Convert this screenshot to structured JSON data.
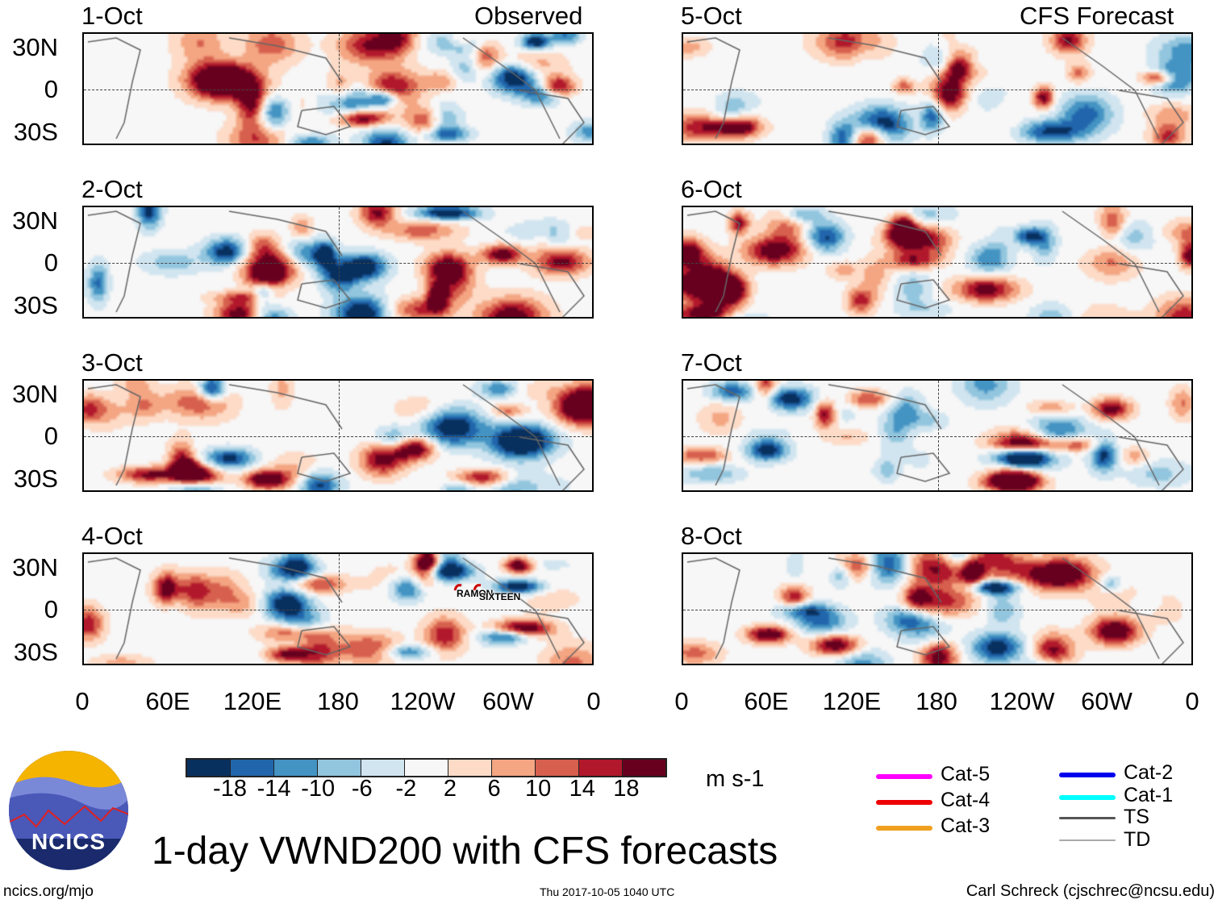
{
  "headers": {
    "left": "Observed",
    "right": "CFS Forecast"
  },
  "panels_left": [
    {
      "date": "1-Oct"
    },
    {
      "date": "2-Oct"
    },
    {
      "date": "3-Oct"
    },
    {
      "date": "4-Oct"
    }
  ],
  "panels_right": [
    {
      "date": "5-Oct"
    },
    {
      "date": "6-Oct"
    },
    {
      "date": "7-Oct"
    },
    {
      "date": "8-Oct"
    }
  ],
  "lat_labels": [
    "30N",
    "0",
    "30S"
  ],
  "lon_labels": [
    "0",
    "60E",
    "120E",
    "180",
    "120W",
    "60W",
    "0"
  ],
  "storms": {
    "a": "RAMON",
    "b": "SIXTEEN"
  },
  "colorbar": {
    "colors": [
      "#08305f",
      "#2166ac",
      "#4393c3",
      "#92c5de",
      "#d1e5f0",
      "#f7f7f7",
      "#fddbc7",
      "#f4a582",
      "#d6604d",
      "#b2182b",
      "#67001f"
    ],
    "labels": [
      "-18",
      "-14",
      "-10",
      "-6",
      "-2",
      "2",
      "6",
      "10",
      "14",
      "18"
    ],
    "units": "m s-1"
  },
  "title": "1-day VWND200 with CFS forecasts",
  "logo_text": "NCICS",
  "footer": {
    "url": "ncics.org/mjo",
    "timestamp": "Thu 2017-10-05 1040 UTC",
    "author": "Carl Schreck (cjschrec@ncsu.edu)"
  },
  "legend": [
    {
      "label": "Cat-5",
      "color": "#ff00ff"
    },
    {
      "label": "Cat-4",
      "color": "#ee0000"
    },
    {
      "label": "Cat-3",
      "color": "#f0a020"
    },
    {
      "label": "Cat-2",
      "color": "#0000ee"
    },
    {
      "label": "Cat-1",
      "color": "#00ffff"
    },
    {
      "label": "TS",
      "color": "#555555"
    },
    {
      "label": "TD",
      "color": "#aaaaaa"
    }
  ]
}
